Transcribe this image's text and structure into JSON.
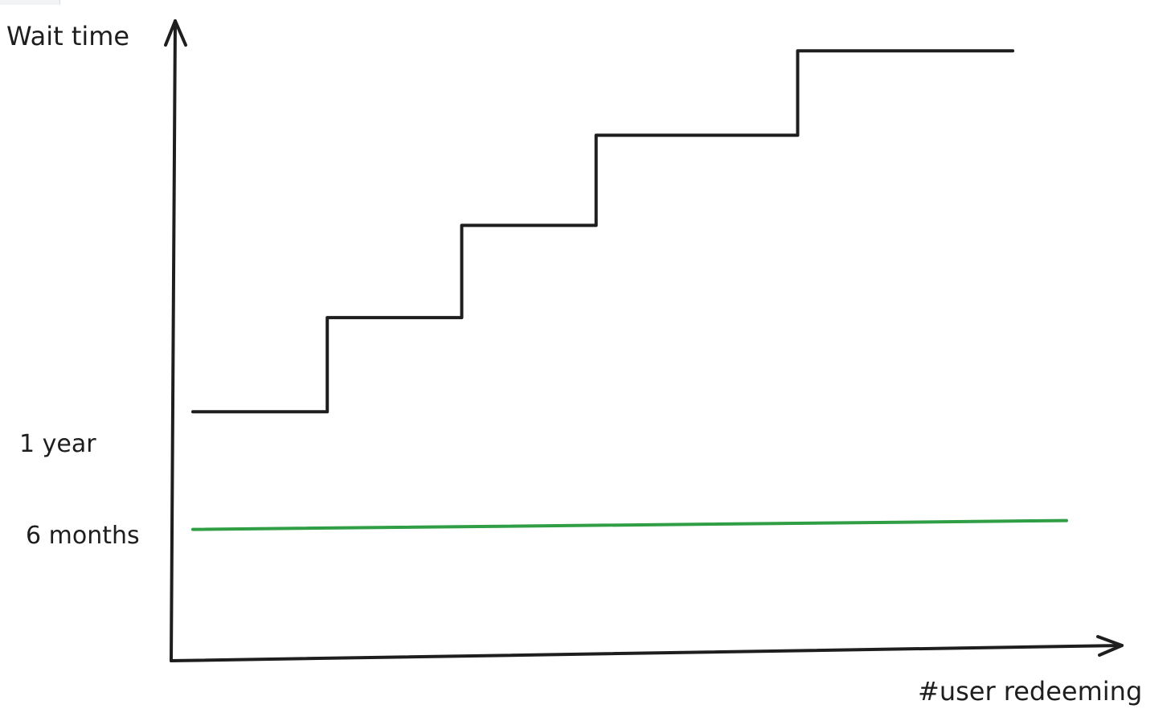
{
  "chart_data": {
    "type": "line",
    "title": "",
    "xlabel": "#user redeeming",
    "ylabel": "Wait time",
    "y_tick_labels": [
      {
        "label": "1 year",
        "value": 12
      },
      {
        "label": "6 months",
        "value": 6
      }
    ],
    "xlim": [
      0,
      6.5
    ],
    "ylim": [
      0,
      30
    ],
    "grid": false,
    "legend": "none",
    "series": [
      {
        "color": "#1e1e1e",
        "style": "step",
        "points": [
          [
            0,
            12
          ],
          [
            1,
            12
          ],
          [
            1,
            16.8
          ],
          [
            2,
            16.8
          ],
          [
            2,
            21.5
          ],
          [
            3,
            21.5
          ],
          [
            3,
            26.1
          ],
          [
            4.5,
            26.1
          ],
          [
            4.5,
            30.4
          ],
          [
            6.1,
            30.4
          ]
        ]
      },
      {
        "color": "#2f9e44",
        "style": "flat",
        "points": [
          [
            0,
            6
          ],
          [
            6.5,
            6
          ]
        ]
      }
    ]
  }
}
